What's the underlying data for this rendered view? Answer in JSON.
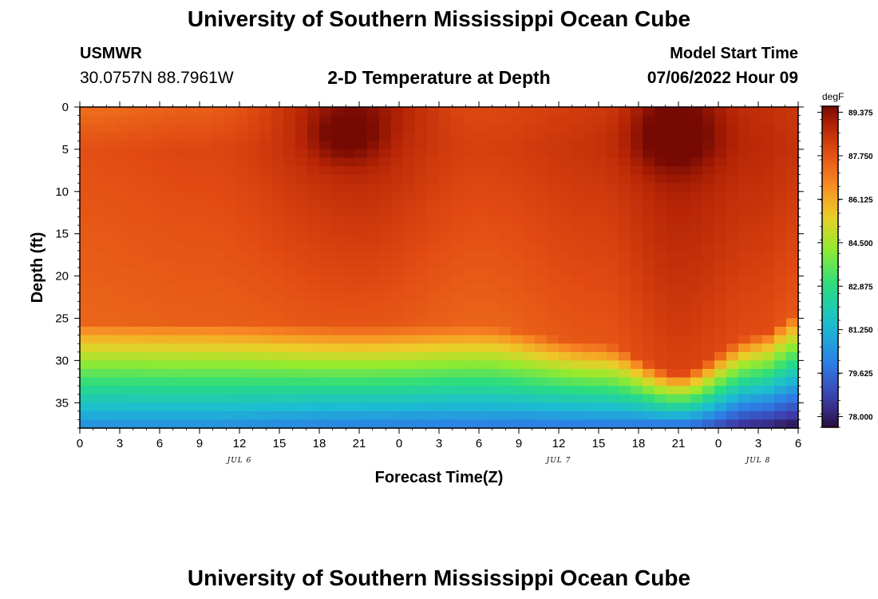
{
  "header": {
    "title": "University of Southern Mississippi Ocean Cube",
    "station": "USMWR",
    "coords": "30.0757N  88.7961W",
    "subtitle": "2-D Temperature at Depth",
    "model_start_label": "Model Start Time",
    "model_start_value": "07/06/2022 Hour 09"
  },
  "footer": {
    "title": "University of Southern Mississippi Ocean Cube"
  },
  "chart_data": {
    "type": "heatmap",
    "title": "2-D Temperature at Depth",
    "xlabel": "Forecast Time(Z)",
    "ylabel": "Depth (ft)",
    "x_range_hours": [
      0,
      54
    ],
    "y_range_ft": [
      0,
      38
    ],
    "x_tick_labels": [
      "0",
      "3",
      "6",
      "9",
      "12",
      "15",
      "18",
      "21",
      "0",
      "3",
      "6",
      "9",
      "12",
      "15",
      "18",
      "21",
      "0",
      "3",
      "6"
    ],
    "y_tick_values": [
      0,
      5,
      10,
      15,
      20,
      25,
      30,
      35
    ],
    "date_labels": [
      {
        "text": "JUL 6",
        "hour": 12
      },
      {
        "text": "JUL 7",
        "hour": 36
      },
      {
        "text": "JUL 8",
        "hour": 51
      }
    ],
    "colorbar": {
      "unit": "degF",
      "min": 77.6,
      "max": 89.6,
      "tick_labels": [
        "89.375",
        "87.750",
        "86.125",
        "84.500",
        "82.875",
        "81.250",
        "79.625",
        "78.000"
      ]
    },
    "profile_anchors": [
      {
        "hour": 0,
        "thermocline_ft": 25.5,
        "warm_core_degF": 88.3,
        "surface_degF": 87.2,
        "bottom_degF": 80.3
      },
      {
        "hour": 9,
        "thermocline_ft": 25.5,
        "warm_core_degF": 88.4,
        "surface_degF": 87.5,
        "bottom_degF": 80.3
      },
      {
        "hour": 21,
        "thermocline_ft": 26.0,
        "warm_core_degF": 88.6,
        "surface_degF": 89.2,
        "bottom_degF": 80.0
      },
      {
        "hour": 30,
        "thermocline_ft": 26.0,
        "warm_core_degF": 88.3,
        "surface_degF": 88.0,
        "bottom_degF": 79.9
      },
      {
        "hour": 39,
        "thermocline_ft": 28.0,
        "warm_core_degF": 88.6,
        "surface_degF": 88.3,
        "bottom_degF": 79.8
      },
      {
        "hour": 45,
        "thermocline_ft": 31.5,
        "warm_core_degF": 89.0,
        "surface_degF": 89.2,
        "bottom_degF": 79.5
      },
      {
        "hour": 51,
        "thermocline_ft": 27.0,
        "warm_core_degF": 88.8,
        "surface_degF": 88.6,
        "bottom_degF": 78.0
      },
      {
        "hour": 54,
        "thermocline_ft": 24.5,
        "warm_core_degF": 88.6,
        "surface_degF": 88.4,
        "bottom_degF": 77.6
      }
    ]
  }
}
